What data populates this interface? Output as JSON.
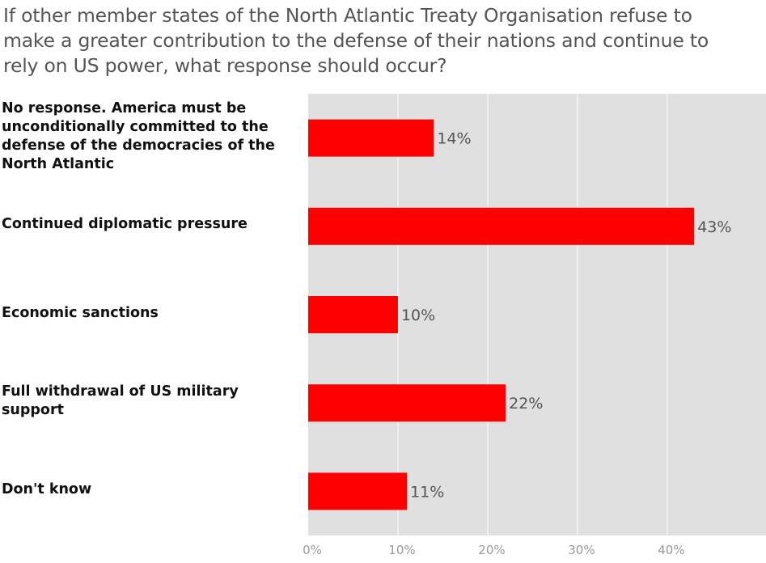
{
  "chart_data": {
    "type": "bar",
    "orientation": "horizontal",
    "title": "If other member states of the North Atlantic Treaty Organisation refuse to make a greater contribution to the defense of their nations and continue to rely on US power, what response should occur?",
    "categories": [
      "No response. America must be unconditionally committed to the defense of the democracies of the North Atlantic",
      "Continued diplomatic pressure",
      "Economic sanctions",
      "Full withdrawal of US military support",
      "Don't know"
    ],
    "values": [
      14,
      43,
      10,
      22,
      11
    ],
    "value_labels": [
      "14%",
      "43%",
      "10%",
      "22%",
      "11%"
    ],
    "xlim": [
      0,
      51
    ],
    "ticks": [
      0,
      10,
      20,
      30,
      40
    ],
    "tick_labels": [
      "0%",
      "10%",
      "20%",
      "30%",
      "40%"
    ],
    "grid": true,
    "bar_color": "#ff0000",
    "background_color": "#e0e0e0",
    "grid_color": "#ffffff"
  }
}
